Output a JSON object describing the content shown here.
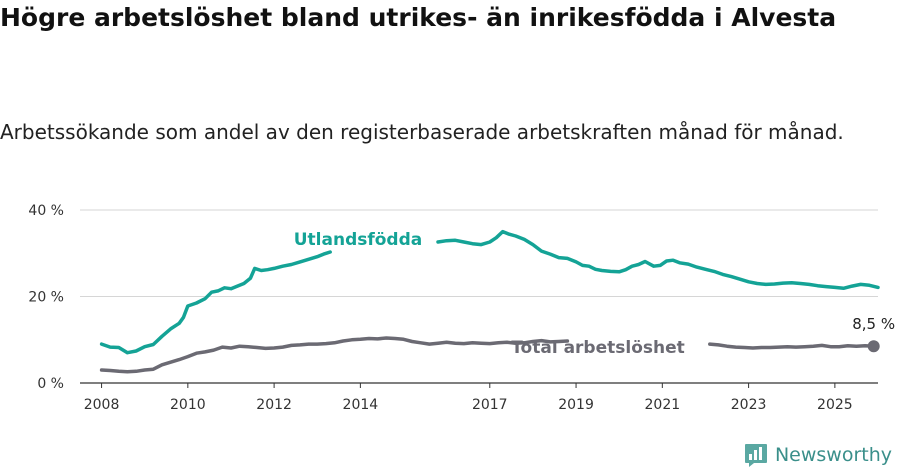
{
  "title": "Högre arbetslöshet bland utrikes- än inrikesfödda i Alvesta",
  "subtitle": "Arbetssökande som andel av den registerbaserade arbetskraften månad för månad.",
  "brand": "Newsworthy",
  "colors": {
    "utlandsfodda": "#14a396",
    "total": "#6b6a73",
    "grid": "#d6d6d6",
    "axis": "#333333"
  },
  "chart_data": {
    "type": "line",
    "ylim": [
      0,
      40
    ],
    "xlim": [
      2007.5,
      2026.0
    ],
    "yticks": [
      0,
      20,
      40
    ],
    "ytick_labels": [
      "0 %",
      "20 %",
      "40 %"
    ],
    "xticks": [
      2008,
      2010,
      2012,
      2014,
      2017,
      2019,
      2021,
      2023,
      2025
    ],
    "xtick_labels": [
      "2008",
      "2010",
      "2012",
      "2014",
      "2017",
      "2019",
      "2021",
      "2023",
      "2025"
    ],
    "grid": true,
    "end_value_label": "8,5 %",
    "series": [
      {
        "name": "Utlandsfödda",
        "color_key": "utlandsfodda",
        "segments": [
          [
            [
              2008.0,
              9.0
            ],
            [
              2008.2,
              8.3
            ],
            [
              2008.4,
              8.2
            ],
            [
              2008.6,
              7.0
            ],
            [
              2008.8,
              7.4
            ],
            [
              2009.0,
              8.4
            ],
            [
              2009.2,
              8.9
            ],
            [
              2009.4,
              10.8
            ],
            [
              2009.6,
              12.5
            ],
            [
              2009.8,
              13.8
            ],
            [
              2009.9,
              15.2
            ],
            [
              2010.0,
              17.8
            ],
            [
              2010.2,
              18.5
            ],
            [
              2010.4,
              19.5
            ],
            [
              2010.55,
              21.0
            ],
            [
              2010.7,
              21.3
            ],
            [
              2010.85,
              22.0
            ],
            [
              2011.0,
              21.8
            ],
            [
              2011.15,
              22.4
            ],
            [
              2011.3,
              23.0
            ],
            [
              2011.45,
              24.2
            ],
            [
              2011.55,
              26.5
            ],
            [
              2011.7,
              26.0
            ],
            [
              2011.85,
              26.2
            ],
            [
              2012.0,
              26.5
            ],
            [
              2012.2,
              27.0
            ],
            [
              2012.4,
              27.4
            ],
            [
              2012.6,
              28.0
            ],
            [
              2012.8,
              28.6
            ],
            [
              2013.0,
              29.2
            ],
            [
              2013.15,
              29.8
            ],
            [
              2013.3,
              30.3
            ]
          ],
          [
            [
              2015.8,
              32.6
            ],
            [
              2016.0,
              32.9
            ],
            [
              2016.2,
              33.0
            ],
            [
              2016.4,
              32.6
            ],
            [
              2016.6,
              32.2
            ],
            [
              2016.8,
              32.0
            ],
            [
              2017.0,
              32.6
            ],
            [
              2017.15,
              33.6
            ],
            [
              2017.3,
              35.0
            ],
            [
              2017.45,
              34.4
            ],
            [
              2017.6,
              34.0
            ],
            [
              2017.8,
              33.2
            ],
            [
              2018.0,
              32.0
            ],
            [
              2018.2,
              30.5
            ],
            [
              2018.4,
              29.8
            ],
            [
              2018.6,
              29.0
            ],
            [
              2018.8,
              28.8
            ],
            [
              2019.0,
              28.0
            ],
            [
              2019.15,
              27.2
            ],
            [
              2019.3,
              27.0
            ],
            [
              2019.45,
              26.3
            ],
            [
              2019.6,
              26.0
            ],
            [
              2019.8,
              25.8
            ],
            [
              2020.0,
              25.7
            ],
            [
              2020.15,
              26.2
            ],
            [
              2020.3,
              27.0
            ],
            [
              2020.45,
              27.4
            ],
            [
              2020.6,
              28.1
            ],
            [
              2020.8,
              27.0
            ],
            [
              2020.95,
              27.2
            ],
            [
              2021.1,
              28.2
            ],
            [
              2021.25,
              28.4
            ],
            [
              2021.4,
              27.8
            ],
            [
              2021.6,
              27.5
            ],
            [
              2021.8,
              26.8
            ],
            [
              2022.0,
              26.3
            ],
            [
              2022.2,
              25.8
            ],
            [
              2022.4,
              25.1
            ],
            [
              2022.6,
              24.6
            ],
            [
              2022.8,
              24.0
            ],
            [
              2023.0,
              23.4
            ],
            [
              2023.2,
              23.0
            ],
            [
              2023.4,
              22.8
            ],
            [
              2023.6,
              22.9
            ],
            [
              2023.8,
              23.1
            ],
            [
              2024.0,
              23.2
            ],
            [
              2024.2,
              23.0
            ],
            [
              2024.4,
              22.8
            ],
            [
              2024.6,
              22.5
            ],
            [
              2024.8,
              22.3
            ],
            [
              2025.0,
              22.1
            ],
            [
              2025.2,
              21.9
            ],
            [
              2025.4,
              22.4
            ],
            [
              2025.6,
              22.8
            ],
            [
              2025.8,
              22.6
            ],
            [
              2026.0,
              22.1
            ]
          ]
        ]
      },
      {
        "name": "Total arbetslöshet",
        "color_key": "total",
        "segments": [
          [
            [
              2008.0,
              3.0
            ],
            [
              2008.2,
              2.9
            ],
            [
              2008.4,
              2.7
            ],
            [
              2008.6,
              2.6
            ],
            [
              2008.8,
              2.7
            ],
            [
              2009.0,
              3.0
            ],
            [
              2009.2,
              3.2
            ],
            [
              2009.4,
              4.2
            ],
            [
              2009.6,
              4.8
            ],
            [
              2009.8,
              5.4
            ],
            [
              2010.0,
              6.1
            ],
            [
              2010.2,
              6.9
            ],
            [
              2010.4,
              7.2
            ],
            [
              2010.6,
              7.6
            ],
            [
              2010.8,
              8.3
            ],
            [
              2011.0,
              8.1
            ],
            [
              2011.2,
              8.5
            ],
            [
              2011.4,
              8.4
            ],
            [
              2011.6,
              8.2
            ],
            [
              2011.8,
              8.0
            ],
            [
              2012.0,
              8.1
            ],
            [
              2012.2,
              8.3
            ],
            [
              2012.4,
              8.7
            ],
            [
              2012.6,
              8.8
            ],
            [
              2012.8,
              9.0
            ],
            [
              2013.0,
              9.0
            ],
            [
              2013.2,
              9.1
            ],
            [
              2013.4,
              9.3
            ],
            [
              2013.6,
              9.7
            ],
            [
              2013.8,
              10.0
            ],
            [
              2014.0,
              10.1
            ],
            [
              2014.2,
              10.3
            ],
            [
              2014.4,
              10.2
            ],
            [
              2014.6,
              10.4
            ],
            [
              2014.8,
              10.3
            ],
            [
              2015.0,
              10.1
            ],
            [
              2015.2,
              9.6
            ],
            [
              2015.4,
              9.3
            ],
            [
              2015.6,
              9.0
            ],
            [
              2015.8,
              9.2
            ],
            [
              2016.0,
              9.4
            ],
            [
              2016.2,
              9.2
            ],
            [
              2016.4,
              9.1
            ],
            [
              2016.6,
              9.3
            ],
            [
              2016.8,
              9.2
            ],
            [
              2017.0,
              9.1
            ],
            [
              2017.2,
              9.3
            ],
            [
              2017.4,
              9.4
            ],
            [
              2017.6,
              9.2
            ],
            [
              2017.8,
              9.3
            ],
            [
              2018.0,
              9.6
            ],
            [
              2018.2,
              9.8
            ],
            [
              2018.4,
              9.5
            ],
            [
              2018.6,
              9.6
            ],
            [
              2018.8,
              9.7
            ]
          ],
          [
            [
              2022.1,
              9.0
            ],
            [
              2022.3,
              8.8
            ],
            [
              2022.5,
              8.5
            ],
            [
              2022.7,
              8.3
            ],
            [
              2022.9,
              8.2
            ],
            [
              2023.1,
              8.1
            ],
            [
              2023.3,
              8.2
            ],
            [
              2023.5,
              8.2
            ],
            [
              2023.7,
              8.3
            ],
            [
              2023.9,
              8.4
            ],
            [
              2024.1,
              8.3
            ],
            [
              2024.3,
              8.4
            ],
            [
              2024.5,
              8.5
            ],
            [
              2024.7,
              8.7
            ],
            [
              2024.9,
              8.4
            ],
            [
              2025.1,
              8.4
            ],
            [
              2025.3,
              8.6
            ],
            [
              2025.5,
              8.5
            ],
            [
              2025.7,
              8.6
            ],
            [
              2025.9,
              8.5
            ]
          ]
        ]
      }
    ],
    "labels": [
      {
        "text": "Utlandsfödda",
        "series_index": 0
      },
      {
        "text": "Total arbetslöshet",
        "series_index": 1
      }
    ]
  }
}
